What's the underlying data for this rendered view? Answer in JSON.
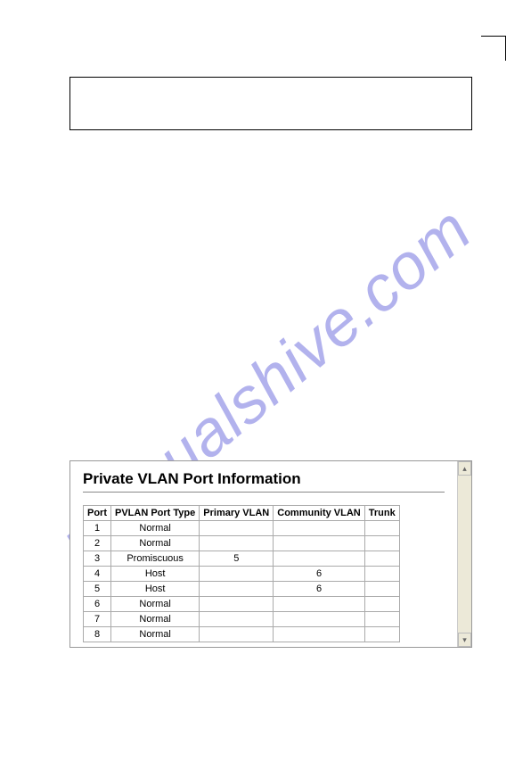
{
  "watermark_text": "manualshive.com",
  "panel": {
    "title": "Private VLAN Port Information",
    "columns": [
      "Port",
      "PVLAN Port Type",
      "Primary VLAN",
      "Community VLAN",
      "Trunk"
    ],
    "rows": [
      {
        "port": "1",
        "type": "Normal",
        "primary": "",
        "community": "",
        "trunk": ""
      },
      {
        "port": "2",
        "type": "Normal",
        "primary": "",
        "community": "",
        "trunk": ""
      },
      {
        "port": "3",
        "type": "Promiscuous",
        "primary": "5",
        "community": "",
        "trunk": ""
      },
      {
        "port": "4",
        "type": "Host",
        "primary": "",
        "community": "6",
        "trunk": ""
      },
      {
        "port": "5",
        "type": "Host",
        "primary": "",
        "community": "6",
        "trunk": ""
      },
      {
        "port": "6",
        "type": "Normal",
        "primary": "",
        "community": "",
        "trunk": ""
      },
      {
        "port": "7",
        "type": "Normal",
        "primary": "",
        "community": "",
        "trunk": ""
      },
      {
        "port": "8",
        "type": "Normal",
        "primary": "",
        "community": "",
        "trunk": ""
      }
    ]
  },
  "styles": {
    "page_bg": "#ffffff",
    "panel_border": "#999999",
    "table_border": "#aaaaaa",
    "watermark_color": "rgba(102,102,220,0.5)",
    "scrollbar_bg": "#ece9d8"
  }
}
